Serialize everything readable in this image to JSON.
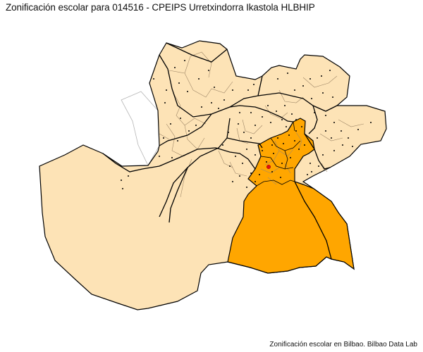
{
  "title": "Zonificación escolar para 014516 - CPEIPS Urretxindorra Ikastola HLBHIP",
  "caption": "Zonificación escolar en Bilbao. Bilbao Data Lab",
  "colors": {
    "background": "#ffffff",
    "district_fill": "#fde3b6",
    "selected_zone_fill": "#ffa600",
    "district_border": "#000000",
    "neighborhood_border": "#a08868",
    "outside_outline": "#b5b5b5",
    "school_dot": "#000000",
    "selected_school_dot": "#e01010"
  },
  "legend": []
}
